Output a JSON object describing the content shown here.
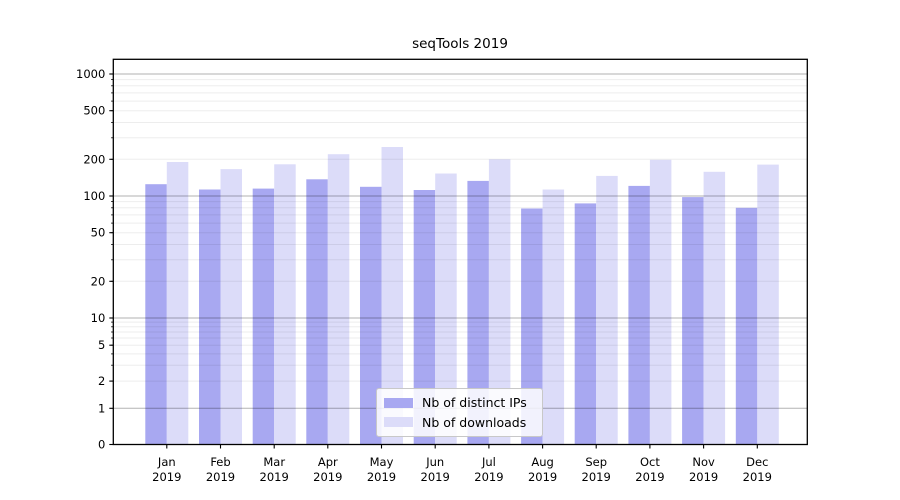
{
  "figure": {
    "background": "#ffffff"
  },
  "chart_data": {
    "type": "bar",
    "title": "seqTools 2019",
    "categories": [
      "Jan 2019",
      "Feb 2019",
      "Mar 2019",
      "Apr 2019",
      "May 2019",
      "Jun 2019",
      "Jul 2019",
      "Aug 2019",
      "Sep 2019",
      "Oct 2019",
      "Nov 2019",
      "Dec 2019"
    ],
    "x_ticks": [
      {
        "month": "Jan",
        "year": "2019"
      },
      {
        "month": "Feb",
        "year": "2019"
      },
      {
        "month": "Mar",
        "year": "2019"
      },
      {
        "month": "Apr",
        "year": "2019"
      },
      {
        "month": "May",
        "year": "2019"
      },
      {
        "month": "Jun",
        "year": "2019"
      },
      {
        "month": "Jul",
        "year": "2019"
      },
      {
        "month": "Aug",
        "year": "2019"
      },
      {
        "month": "Sep",
        "year": "2019"
      },
      {
        "month": "Oct",
        "year": "2019"
      },
      {
        "month": "Nov",
        "year": "2019"
      },
      {
        "month": "Dec",
        "year": "2019"
      }
    ],
    "series": [
      {
        "name": "Nb of distinct IPs",
        "color": "#a8a8f1",
        "values": [
          125,
          113,
          115,
          137,
          119,
          112,
          133,
          79,
          87,
          121,
          98,
          80
        ]
      },
      {
        "name": "Nb of downloads",
        "color": "#dcdcf9",
        "values": [
          190,
          166,
          182,
          220,
          252,
          153,
          200,
          113,
          146,
          198,
          158,
          181
        ]
      }
    ],
    "yscale": "symlog",
    "y_ticks": [
      0,
      1,
      2,
      5,
      10,
      20,
      50,
      100,
      200,
      500,
      1000
    ],
    "ylim": [
      0,
      1300
    ],
    "grid": "horizontal major and minor lines",
    "legend_position": "lower center"
  },
  "colors": {
    "axis": "#000000",
    "grid_major": "rgba(0,0,0,0.30)",
    "grid_minor": "rgba(0,0,0,0.07)",
    "tick_text": "#000000",
    "legend_border": "#c8c8c8"
  }
}
